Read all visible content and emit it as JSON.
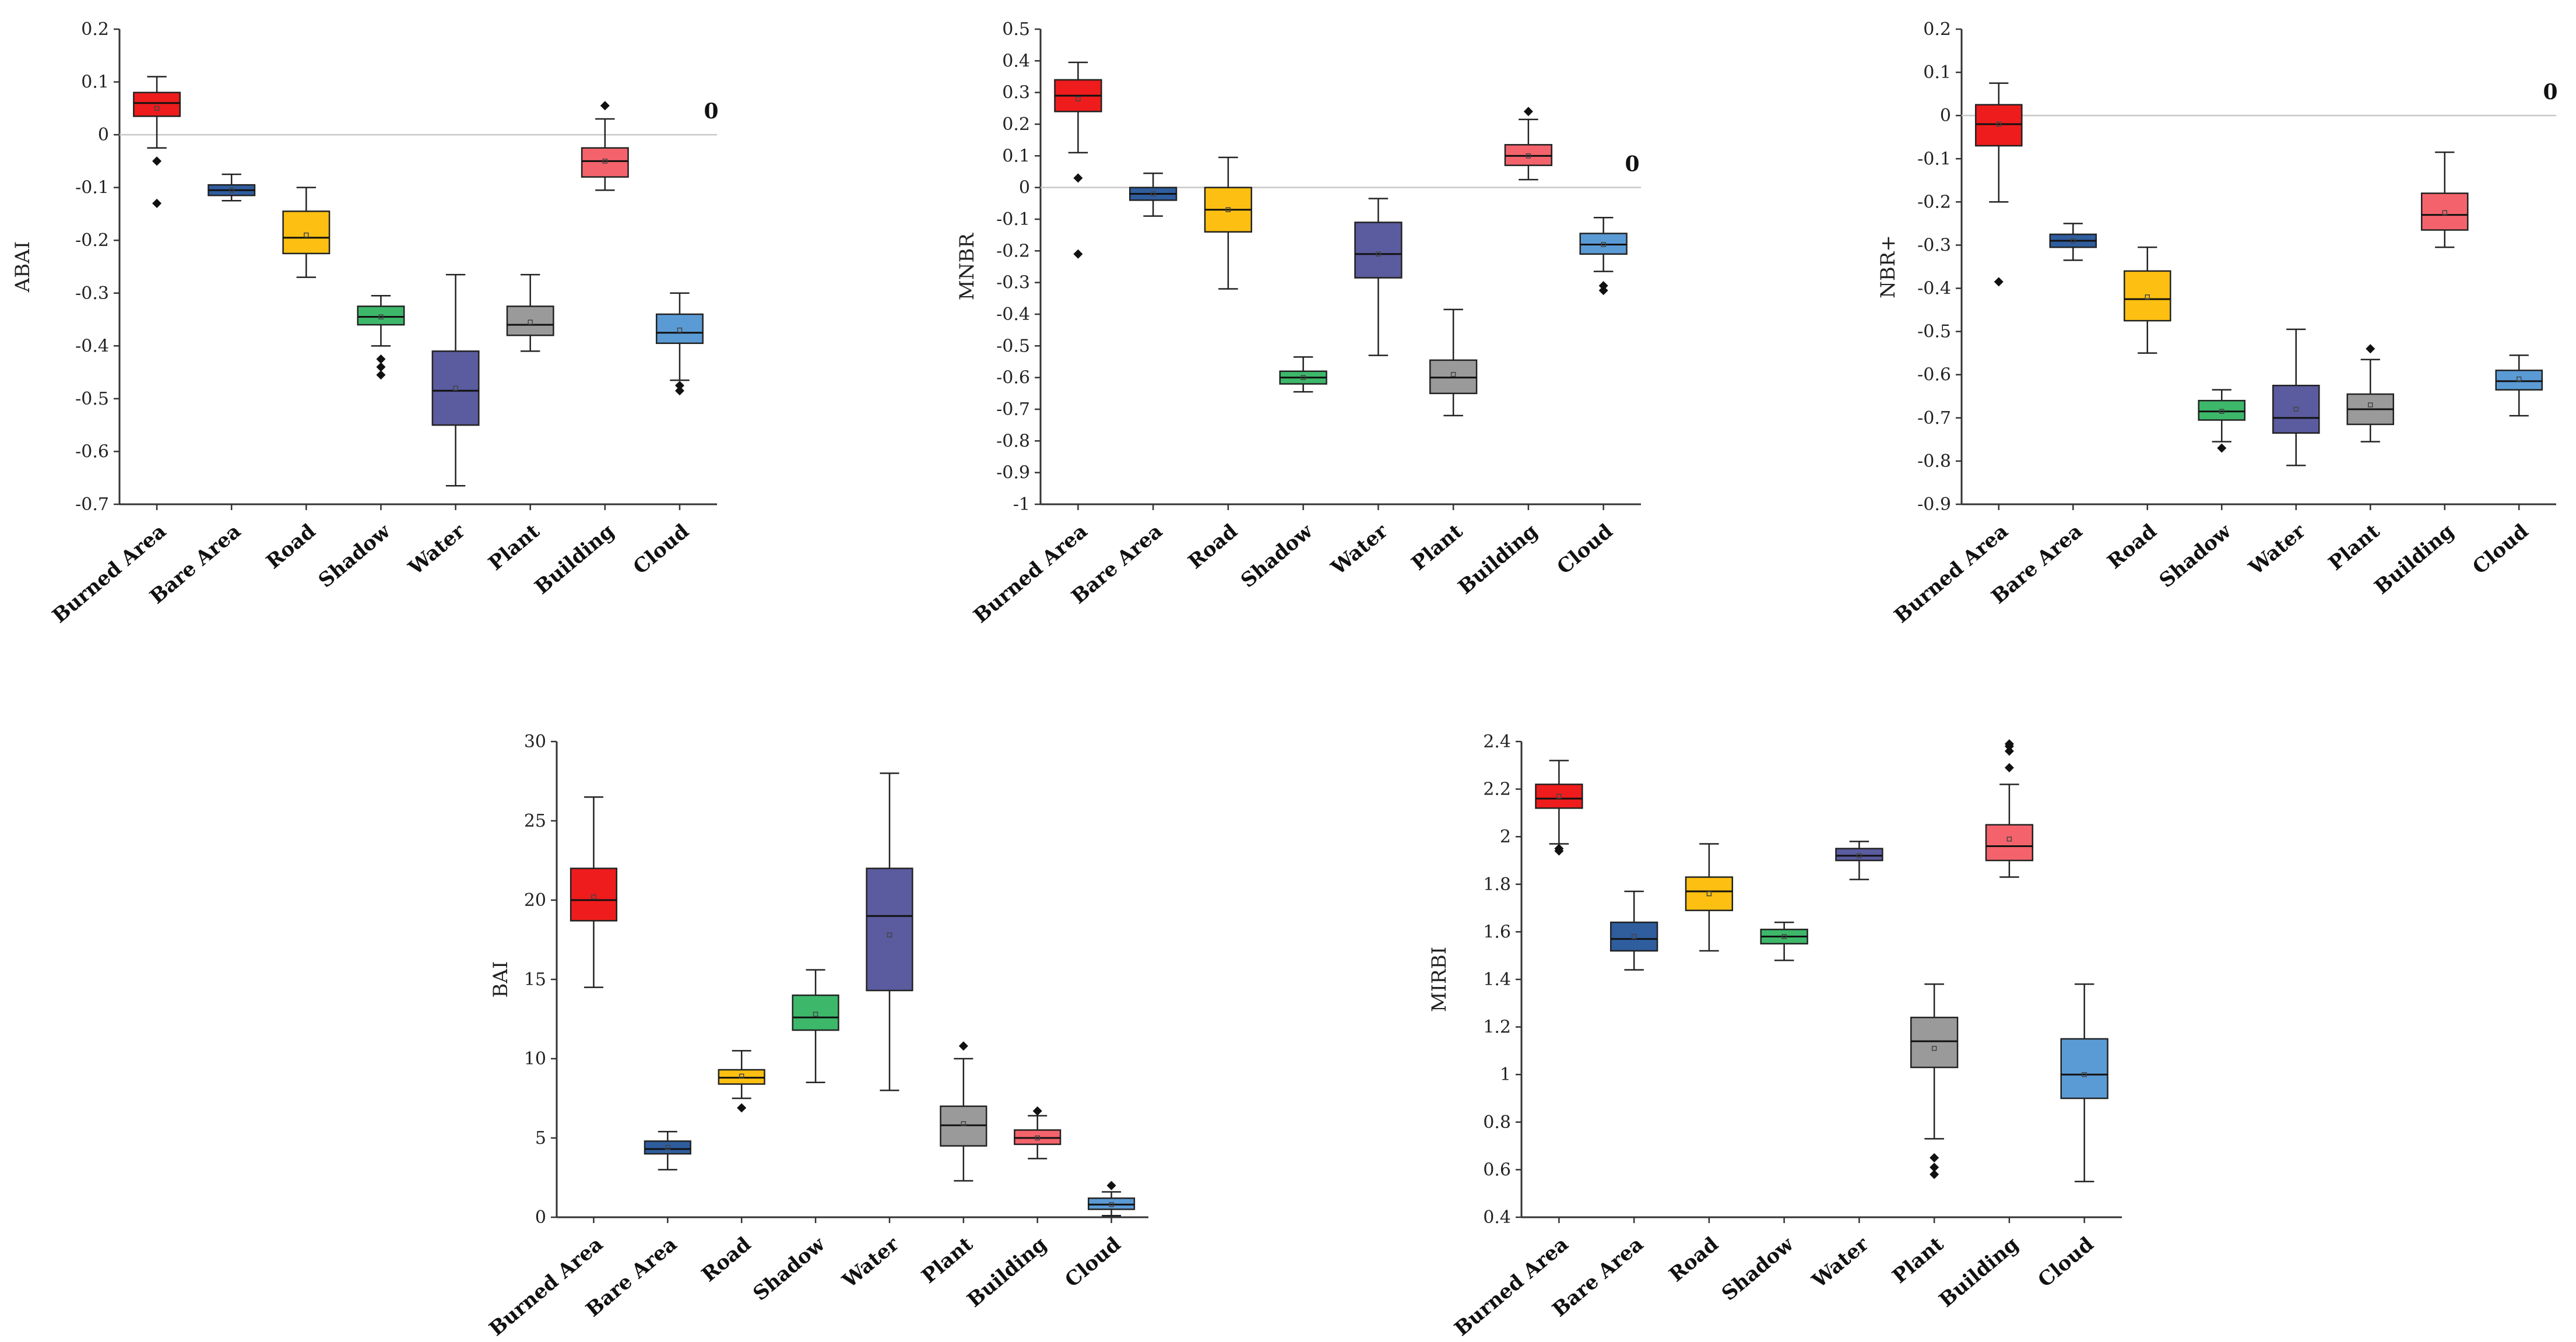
{
  "chart_data": [
    {
      "type": "box",
      "title": "",
      "ylabel": "ABAI",
      "xlabel": "",
      "ylim": [
        -0.7,
        0.2
      ],
      "yticks": [
        0.2,
        0.1,
        0,
        -0.1,
        -0.2,
        -0.3,
        -0.4,
        -0.5,
        -0.6,
        -0.7
      ],
      "reference_line": 0,
      "reference_label": "0",
      "categories": [
        "Burned Area",
        "Bare Area",
        "Road",
        "Shadow",
        "Water",
        "Plant",
        "Building",
        "Cloud"
      ],
      "boxes": [
        {
          "category": "Burned Area",
          "color": "#ee1c1c",
          "q1": 0.035,
          "median": 0.06,
          "q3": 0.08,
          "whisker_low": -0.025,
          "whisker_high": 0.11,
          "mean": 0.05,
          "outliers": [
            -0.05,
            -0.13
          ]
        },
        {
          "category": "Bare Area",
          "color": "#2f5d9e",
          "q1": -0.115,
          "median": -0.105,
          "q3": -0.095,
          "whisker_low": -0.125,
          "whisker_high": -0.075,
          "mean": -0.105,
          "outliers": []
        },
        {
          "category": "Road",
          "color": "#fdc012",
          "q1": -0.225,
          "median": -0.195,
          "q3": -0.145,
          "whisker_low": -0.27,
          "whisker_high": -0.1,
          "mean": -0.19,
          "outliers": []
        },
        {
          "category": "Shadow",
          "color": "#3db86a",
          "q1": -0.36,
          "median": -0.345,
          "q3": -0.325,
          "whisker_low": -0.4,
          "whisker_high": -0.305,
          "mean": -0.345,
          "outliers": [
            -0.425,
            -0.44,
            -0.455
          ]
        },
        {
          "category": "Water",
          "color": "#5b5b9f",
          "q1": -0.55,
          "median": -0.485,
          "q3": -0.41,
          "whisker_low": -0.665,
          "whisker_high": -0.265,
          "mean": -0.48,
          "outliers": []
        },
        {
          "category": "Plant",
          "color": "#9a9a9a",
          "q1": -0.38,
          "median": -0.36,
          "q3": -0.325,
          "whisker_low": -0.41,
          "whisker_high": -0.265,
          "mean": -0.355,
          "outliers": []
        },
        {
          "category": "Building",
          "color": "#f4636b",
          "q1": -0.08,
          "median": -0.05,
          "q3": -0.025,
          "whisker_low": -0.105,
          "whisker_high": 0.03,
          "mean": -0.05,
          "outliers": [
            0.055
          ]
        },
        {
          "category": "Cloud",
          "color": "#5b9bd5",
          "q1": -0.395,
          "median": -0.375,
          "q3": -0.34,
          "whisker_low": -0.465,
          "whisker_high": -0.3,
          "mean": -0.37,
          "outliers": [
            -0.475,
            -0.485
          ]
        }
      ]
    },
    {
      "type": "box",
      "title": "",
      "ylabel": "MNBR",
      "xlabel": "",
      "ylim": [
        -1.0,
        0.5
      ],
      "yticks": [
        0.5,
        0.4,
        0.3,
        0.2,
        0.1,
        0,
        -0.1,
        -0.2,
        -0.3,
        -0.4,
        -0.5,
        -0.6,
        -0.7,
        -0.8,
        -0.9,
        -1.0
      ],
      "reference_line": 0,
      "reference_label": "0",
      "categories": [
        "Burned Area",
        "Bare Area",
        "Road",
        "Shadow",
        "Water",
        "Plant",
        "Building",
        "Cloud"
      ],
      "boxes": [
        {
          "category": "Burned Area",
          "color": "#ee1c1c",
          "q1": 0.24,
          "median": 0.29,
          "q3": 0.34,
          "whisker_low": 0.11,
          "whisker_high": 0.395,
          "mean": 0.28,
          "outliers": [
            0.03,
            -0.21
          ]
        },
        {
          "category": "Bare Area",
          "color": "#2f5d9e",
          "q1": -0.04,
          "median": -0.02,
          "q3": 0.0,
          "whisker_low": -0.09,
          "whisker_high": 0.045,
          "mean": -0.02,
          "outliers": []
        },
        {
          "category": "Road",
          "color": "#fdc012",
          "q1": -0.14,
          "median": -0.07,
          "q3": 0.0,
          "whisker_low": -0.32,
          "whisker_high": 0.095,
          "mean": -0.07,
          "outliers": []
        },
        {
          "category": "Shadow",
          "color": "#3db86a",
          "q1": -0.62,
          "median": -0.6,
          "q3": -0.58,
          "whisker_low": -0.645,
          "whisker_high": -0.535,
          "mean": -0.6,
          "outliers": []
        },
        {
          "category": "Water",
          "color": "#5b5b9f",
          "q1": -0.285,
          "median": -0.21,
          "q3": -0.11,
          "whisker_low": -0.53,
          "whisker_high": -0.035,
          "mean": -0.21,
          "outliers": []
        },
        {
          "category": "Plant",
          "color": "#9a9a9a",
          "q1": -0.65,
          "median": -0.6,
          "q3": -0.545,
          "whisker_low": -0.72,
          "whisker_high": -0.385,
          "mean": -0.59,
          "outliers": []
        },
        {
          "category": "Building",
          "color": "#f4636b",
          "q1": 0.07,
          "median": 0.1,
          "q3": 0.135,
          "whisker_low": 0.025,
          "whisker_high": 0.215,
          "mean": 0.1,
          "outliers": [
            0.24
          ]
        },
        {
          "category": "Cloud",
          "color": "#5b9bd5",
          "q1": -0.21,
          "median": -0.18,
          "q3": -0.145,
          "whisker_low": -0.265,
          "whisker_high": -0.095,
          "mean": -0.18,
          "outliers": [
            -0.31,
            -0.325
          ]
        }
      ]
    },
    {
      "type": "box",
      "title": "",
      "ylabel": "NBR+",
      "xlabel": "",
      "ylim": [
        -0.9,
        0.2
      ],
      "yticks": [
        0.2,
        0.1,
        0,
        -0.1,
        -0.2,
        -0.3,
        -0.4,
        -0.5,
        -0.6,
        -0.7,
        -0.8,
        -0.9
      ],
      "reference_line": 0,
      "reference_label": "0",
      "categories": [
        "Burned Area",
        "Bare Area",
        "Road",
        "Shadow",
        "Water",
        "Plant",
        "Building",
        "Cloud"
      ],
      "boxes": [
        {
          "category": "Burned Area",
          "color": "#ee1c1c",
          "q1": -0.07,
          "median": -0.02,
          "q3": 0.025,
          "whisker_low": -0.2,
          "whisker_high": 0.075,
          "mean": -0.02,
          "outliers": [
            -0.385
          ]
        },
        {
          "category": "Bare Area",
          "color": "#2f5d9e",
          "q1": -0.305,
          "median": -0.29,
          "q3": -0.275,
          "whisker_low": -0.335,
          "whisker_high": -0.25,
          "mean": -0.29,
          "outliers": []
        },
        {
          "category": "Road",
          "color": "#fdc012",
          "q1": -0.475,
          "median": -0.425,
          "q3": -0.36,
          "whisker_low": -0.55,
          "whisker_high": -0.305,
          "mean": -0.42,
          "outliers": []
        },
        {
          "category": "Shadow",
          "color": "#3db86a",
          "q1": -0.705,
          "median": -0.685,
          "q3": -0.66,
          "whisker_low": -0.755,
          "whisker_high": -0.635,
          "mean": -0.685,
          "outliers": [
            -0.77
          ]
        },
        {
          "category": "Water",
          "color": "#5b5b9f",
          "q1": -0.735,
          "median": -0.7,
          "q3": -0.625,
          "whisker_low": -0.81,
          "whisker_high": -0.495,
          "mean": -0.68,
          "outliers": []
        },
        {
          "category": "Plant",
          "color": "#9a9a9a",
          "q1": -0.715,
          "median": -0.68,
          "q3": -0.645,
          "whisker_low": -0.755,
          "whisker_high": -0.565,
          "mean": -0.67,
          "outliers": [
            -0.54
          ]
        },
        {
          "category": "Building",
          "color": "#f4636b",
          "q1": -0.265,
          "median": -0.23,
          "q3": -0.18,
          "whisker_low": -0.305,
          "whisker_high": -0.085,
          "mean": -0.225,
          "outliers": []
        },
        {
          "category": "Cloud",
          "color": "#5b9bd5",
          "q1": -0.635,
          "median": -0.615,
          "q3": -0.59,
          "whisker_low": -0.695,
          "whisker_high": -0.555,
          "mean": -0.61,
          "outliers": []
        }
      ]
    },
    {
      "type": "box",
      "title": "",
      "ylabel": "BAI",
      "xlabel": "",
      "ylim": [
        0,
        30
      ],
      "yticks": [
        30,
        25,
        20,
        15,
        10,
        5,
        0
      ],
      "reference_line": null,
      "reference_label": "",
      "categories": [
        "Burned Area",
        "Bare Area",
        "Road",
        "Shadow",
        "Water",
        "Plant",
        "Building",
        "Cloud"
      ],
      "boxes": [
        {
          "category": "Burned Area",
          "color": "#ee1c1c",
          "q1": 18.7,
          "median": 20.0,
          "q3": 22.0,
          "whisker_low": 14.5,
          "whisker_high": 26.5,
          "mean": 20.2,
          "outliers": []
        },
        {
          "category": "Bare Area",
          "color": "#2f5d9e",
          "q1": 4.0,
          "median": 4.3,
          "q3": 4.8,
          "whisker_low": 3.0,
          "whisker_high": 5.4,
          "mean": 4.4,
          "outliers": []
        },
        {
          "category": "Road",
          "color": "#fdc012",
          "q1": 8.4,
          "median": 8.8,
          "q3": 9.3,
          "whisker_low": 7.5,
          "whisker_high": 10.5,
          "mean": 8.9,
          "outliers": [
            6.9
          ]
        },
        {
          "category": "Shadow",
          "color": "#3db86a",
          "q1": 11.8,
          "median": 12.6,
          "q3": 14.0,
          "whisker_low": 8.5,
          "whisker_high": 15.6,
          "mean": 12.8,
          "outliers": []
        },
        {
          "category": "Water",
          "color": "#5b5b9f",
          "q1": 14.3,
          "median": 19.0,
          "q3": 22.0,
          "whisker_low": 8.0,
          "whisker_high": 28.0,
          "mean": 17.8,
          "outliers": []
        },
        {
          "category": "Plant",
          "color": "#9a9a9a",
          "q1": 4.5,
          "median": 5.8,
          "q3": 7.0,
          "whisker_low": 2.3,
          "whisker_high": 10.0,
          "mean": 5.9,
          "outliers": [
            10.8
          ]
        },
        {
          "category": "Building",
          "color": "#f4636b",
          "q1": 4.6,
          "median": 5.0,
          "q3": 5.5,
          "whisker_low": 3.7,
          "whisker_high": 6.4,
          "mean": 5.0,
          "outliers": [
            6.7
          ]
        },
        {
          "category": "Cloud",
          "color": "#5b9bd5",
          "q1": 0.5,
          "median": 0.8,
          "q3": 1.2,
          "whisker_low": 0.1,
          "whisker_high": 1.6,
          "mean": 0.8,
          "outliers": [
            2.0
          ]
        }
      ]
    },
    {
      "type": "box",
      "title": "",
      "ylabel": "MIRBI",
      "xlabel": "",
      "ylim": [
        0.4,
        2.4
      ],
      "yticks": [
        2.4,
        2.2,
        2.0,
        1.8,
        1.6,
        1.4,
        1.2,
        1.0,
        0.8,
        0.6,
        0.4
      ],
      "reference_line": null,
      "reference_label": "",
      "categories": [
        "Burned Area",
        "Bare Area",
        "Road",
        "Shadow",
        "Water",
        "Plant",
        "Building",
        "Cloud"
      ],
      "boxes": [
        {
          "category": "Burned Area",
          "color": "#ee1c1c",
          "q1": 2.12,
          "median": 2.16,
          "q3": 2.22,
          "whisker_low": 1.97,
          "whisker_high": 2.32,
          "mean": 2.17,
          "outliers": [
            1.95,
            1.94
          ]
        },
        {
          "category": "Bare Area",
          "color": "#2f5d9e",
          "q1": 1.52,
          "median": 1.57,
          "q3": 1.64,
          "whisker_low": 1.44,
          "whisker_high": 1.77,
          "mean": 1.58,
          "outliers": []
        },
        {
          "category": "Road",
          "color": "#fdc012",
          "q1": 1.69,
          "median": 1.77,
          "q3": 1.83,
          "whisker_low": 1.52,
          "whisker_high": 1.97,
          "mean": 1.76,
          "outliers": []
        },
        {
          "category": "Shadow",
          "color": "#3db86a",
          "q1": 1.55,
          "median": 1.58,
          "q3": 1.61,
          "whisker_low": 1.48,
          "whisker_high": 1.64,
          "mean": 1.58,
          "outliers": []
        },
        {
          "category": "Water",
          "color": "#5b5b9f",
          "q1": 1.9,
          "median": 1.92,
          "q3": 1.95,
          "whisker_low": 1.82,
          "whisker_high": 1.98,
          "mean": 1.92,
          "outliers": []
        },
        {
          "category": "Plant",
          "color": "#9a9a9a",
          "q1": 1.03,
          "median": 1.14,
          "q3": 1.24,
          "whisker_low": 0.73,
          "whisker_high": 1.38,
          "mean": 1.11,
          "outliers": [
            0.65,
            0.61,
            0.58
          ]
        },
        {
          "category": "Building",
          "color": "#f4636b",
          "q1": 1.9,
          "median": 1.96,
          "q3": 2.05,
          "whisker_low": 1.83,
          "whisker_high": 2.22,
          "mean": 1.99,
          "outliers": [
            2.29,
            2.36,
            2.38,
            2.39
          ]
        },
        {
          "category": "Cloud",
          "color": "#5b9bd5",
          "q1": 0.9,
          "median": 1.0,
          "q3": 1.15,
          "whisker_low": 0.55,
          "whisker_high": 1.38,
          "mean": 1.0,
          "outliers": []
        }
      ]
    }
  ]
}
